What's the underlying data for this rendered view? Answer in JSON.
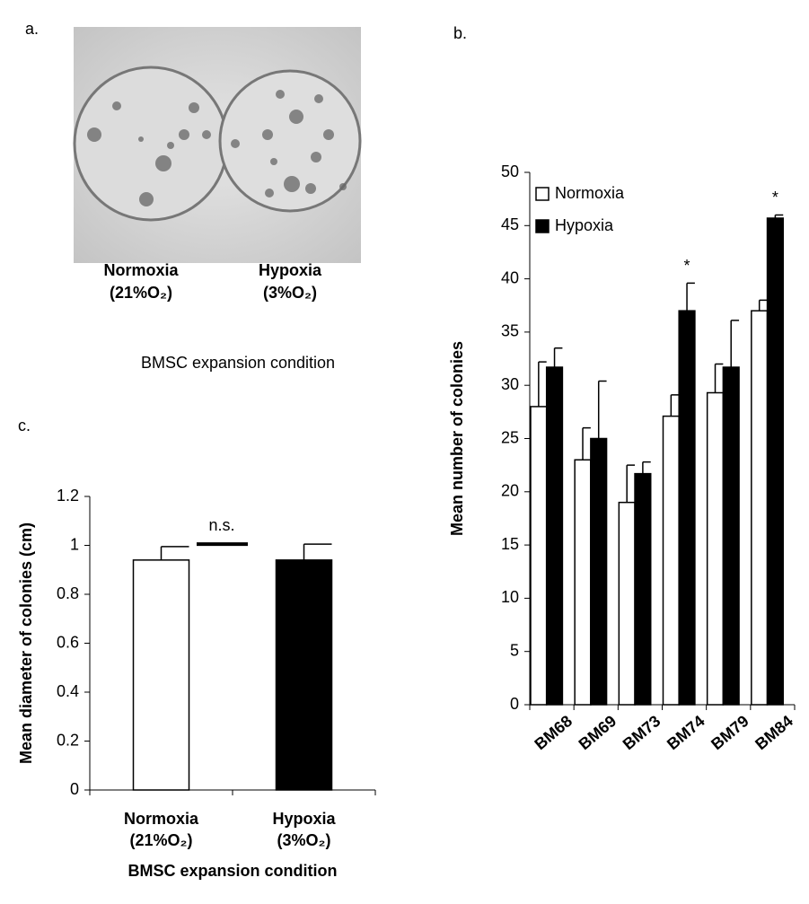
{
  "panel_a": {
    "panel_label": "a.",
    "conditions": [
      "Normoxia",
      "Hypoxia"
    ],
    "condition_notes": [
      "(21%O₂)",
      "(3%O₂)"
    ],
    "xlabel": "BMSC expansion condition"
  },
  "chart_data": [
    {
      "type": "bar",
      "panel_label": "b.",
      "ylabel": "Mean number of colonies",
      "categories": [
        "BM68",
        "BM69",
        "BM73",
        "BM74",
        "BM79",
        "BM84"
      ],
      "series": [
        {
          "name": "Normoxia",
          "color": "#ffffff",
          "values": [
            28,
            23,
            19,
            27.1,
            29.3,
            37
          ],
          "errors": [
            4.2,
            3,
            3.5,
            2,
            2.7,
            1
          ]
        },
        {
          "name": "Hypoxia",
          "color": "#000000",
          "values": [
            31.7,
            25,
            21.7,
            37,
            31.7,
            45.7
          ],
          "errors": [
            1.8,
            5.4,
            1.1,
            2.6,
            4.4,
            0.3
          ]
        }
      ],
      "annotations": [
        {
          "text": "*",
          "category": "BM74",
          "series": "Hypoxia"
        },
        {
          "text": "*",
          "category": "BM84",
          "series": "Hypoxia"
        }
      ],
      "ylim": [
        0,
        50
      ],
      "yticks": [
        0,
        5,
        10,
        15,
        20,
        25,
        30,
        35,
        40,
        45,
        50
      ],
      "legend": "top-left",
      "grid": false
    },
    {
      "type": "bar",
      "panel_label": "c.",
      "ylabel": "Mean diameter of colonies (cm)",
      "xlabel": "BMSC expansion condition",
      "categories": [
        "Normoxia",
        "Hypoxia"
      ],
      "category_notes": [
        "(21%O₂)",
        "(3%O₂)"
      ],
      "colors": [
        "#ffffff",
        "#000000"
      ],
      "values": [
        0.94,
        0.94
      ],
      "errors": [
        0.055,
        0.065
      ],
      "annotations": [
        {
          "text": "n.s."
        }
      ],
      "ylim": [
        0,
        1.2
      ],
      "yticks": [
        0,
        0.2,
        0.4,
        0.6,
        0.8,
        1,
        1.2
      ],
      "grid": false
    }
  ]
}
